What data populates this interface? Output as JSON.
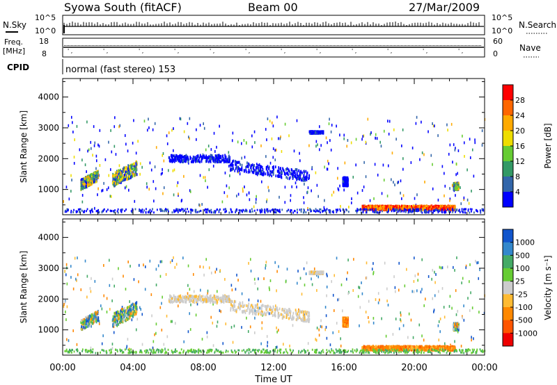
{
  "header": {
    "station": "Syowa South (fitACF)",
    "beam": "Beam 00",
    "date": "27/Mar/2009"
  },
  "status_panels": {
    "nsky": {
      "label": "N.Sky",
      "ticks": [
        "10^5",
        "10^0"
      ],
      "right_label": "N.Search",
      "right_ticks": [
        "10^5",
        "10^0"
      ]
    },
    "freq": {
      "label_line1": "Freq.",
      "label_line2": "[MHz]",
      "ticks": [
        "18",
        "8"
      ],
      "right_label": "Nave",
      "right_ticks": [
        "60",
        "0"
      ]
    },
    "cpid": {
      "label": "CPID",
      "mode": "normal (fast stereo) 153"
    }
  },
  "chart_data": [
    {
      "type": "heatmap",
      "name": "power",
      "ylabel": "Slant Range [km]",
      "xlabel": "",
      "ylim": [
        180,
        4600
      ],
      "yticks": [
        1000,
        2000,
        3000,
        4000
      ],
      "xticks": [
        "00:00",
        "04:00",
        "08:00",
        "12:00",
        "16:00",
        "20:00",
        "00:00"
      ],
      "colorbar": {
        "label": "Power [dB]",
        "ticks": [
          "28",
          "24",
          "20",
          "16",
          "12",
          "8",
          "4"
        ],
        "colors": [
          "#ff0000",
          "#ff6600",
          "#ffaa00",
          "#eedd00",
          "#66cc33",
          "#339966",
          "#3366aa",
          "#0000ff"
        ]
      },
      "echo_regions": [
        {
          "t": [
            1.0,
            2.0
          ],
          "r": [
            1000,
            1600
          ],
          "level": "mixed"
        },
        {
          "t": [
            2.8,
            4.2
          ],
          "r": [
            1100,
            1900
          ],
          "level": "mixed"
        },
        {
          "t": [
            6.0,
            9.5
          ],
          "r": [
            1800,
            2200
          ],
          "level": "low"
        },
        {
          "t": [
            9.5,
            14.0
          ],
          "r": [
            1300,
            1900
          ],
          "level": "low"
        },
        {
          "t": [
            14.0,
            14.8
          ],
          "r": [
            2850,
            2850
          ],
          "level": "low"
        },
        {
          "t": [
            15.9,
            16.2
          ],
          "r": [
            1000,
            1500
          ],
          "level": "low"
        },
        {
          "t": [
            17.0,
            22.3
          ],
          "r": [
            280,
            520
          ],
          "level": "high"
        },
        {
          "t": [
            22.2,
            22.5
          ],
          "r": [
            900,
            1300
          ],
          "level": "mixed"
        }
      ]
    },
    {
      "type": "heatmap",
      "name": "velocity",
      "ylabel": "Slant Range [km]",
      "xlabel": "Time UT",
      "ylim": [
        180,
        4600
      ],
      "yticks": [
        1000,
        2000,
        3000,
        4000
      ],
      "xticks": [
        "00:00",
        "04:00",
        "08:00",
        "12:00",
        "16:00",
        "20:00",
        "00:00"
      ],
      "colorbar": {
        "label": "Velocity [m s⁻¹]",
        "ticks": [
          "1000",
          "500",
          "100",
          "25",
          "-25",
          "-100",
          "-500",
          "-1000"
        ],
        "colors": [
          "#1155cc",
          "#3388cc",
          "#44aa66",
          "#66cc33",
          "#cccccc",
          "#ffbb33",
          "#ff8800",
          "#ff5500",
          "#ee0000"
        ]
      },
      "echo_regions": [
        {
          "t": [
            1.0,
            2.0
          ],
          "r": [
            1000,
            1600
          ],
          "level": "mixed"
        },
        {
          "t": [
            2.8,
            4.2
          ],
          "r": [
            1100,
            1900
          ],
          "level": "mixed"
        },
        {
          "t": [
            6.0,
            9.5
          ],
          "r": [
            1800,
            2200
          ],
          "level": "near-zero"
        },
        {
          "t": [
            9.5,
            14.0
          ],
          "r": [
            1300,
            1900
          ],
          "level": "near-zero"
        },
        {
          "t": [
            14.0,
            14.8
          ],
          "r": [
            2850,
            2850
          ],
          "level": "near-zero"
        },
        {
          "t": [
            15.9,
            16.2
          ],
          "r": [
            1000,
            1500
          ],
          "level": "receding"
        },
        {
          "t": [
            17.0,
            22.3
          ],
          "r": [
            280,
            520
          ],
          "level": "receding"
        },
        {
          "t": [
            22.2,
            22.5
          ],
          "r": [
            900,
            1300
          ],
          "level": "mixed"
        }
      ]
    }
  ]
}
